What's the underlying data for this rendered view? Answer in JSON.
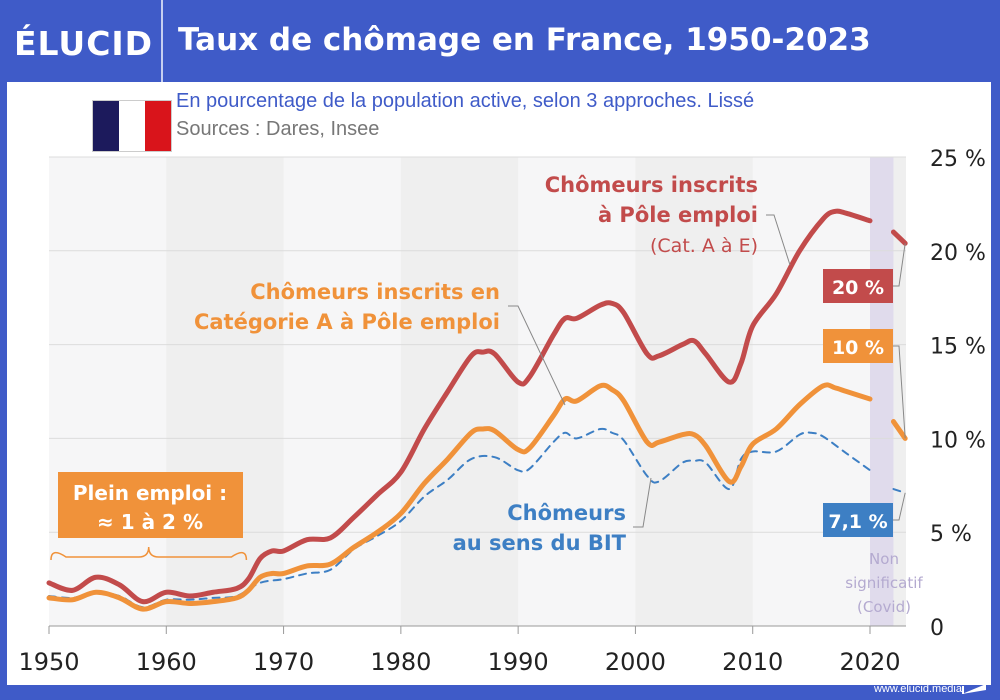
{
  "header": {
    "logo": "ÉLUCID",
    "title": "Taux de chômage en France, 1950-2023"
  },
  "subtitle": "En pourcentage de la population active, selon 3 approches. Lissé",
  "sources": "Sources : Dares, Insee",
  "footer": "www.elucid.media",
  "colors": {
    "brand": "#3f5bc8",
    "red": "#c24b4b",
    "orange": "#f0923a",
    "blue": "#3d7fc4",
    "covid_band": "#e0dbec",
    "flag_blue": "#1c1a5c",
    "flag_red": "#d9141b"
  },
  "chart_data": {
    "type": "line",
    "title": "Taux de chômage en France, 1950-2023",
    "xlabel": "",
    "ylabel": "",
    "xlim": [
      1950,
      2023
    ],
    "ylim": [
      0,
      25
    ],
    "x_ticks": [
      "1950",
      "1960",
      "1970",
      "1980",
      "1990",
      "2000",
      "2010",
      "2020"
    ],
    "y_ticks": [
      "0",
      "5 %",
      "10 %",
      "15 %",
      "20 %",
      "25 %"
    ],
    "grid": true,
    "series": [
      {
        "name": "Chômeurs inscrits à Pôle emploi (Cat. A à E)",
        "label_lines": [
          "Chômeurs inscrits",
          "à Pôle emploi",
          "(Cat. A à E)"
        ],
        "end_label": "20 %",
        "style": "solid",
        "points": [
          [
            1950,
            2.3
          ],
          [
            1952,
            1.9
          ],
          [
            1954,
            2.6
          ],
          [
            1956,
            2.2
          ],
          [
            1958,
            1.3
          ],
          [
            1960,
            1.8
          ],
          [
            1962,
            1.6
          ],
          [
            1964,
            1.8
          ],
          [
            1966,
            2.0
          ],
          [
            1967,
            2.5
          ],
          [
            1968,
            3.6
          ],
          [
            1969,
            4.0
          ],
          [
            1970,
            4.0
          ],
          [
            1972,
            4.6
          ],
          [
            1974,
            4.7
          ],
          [
            1976,
            5.8
          ],
          [
            1978,
            7.0
          ],
          [
            1980,
            8.2
          ],
          [
            1982,
            10.5
          ],
          [
            1984,
            12.5
          ],
          [
            1986,
            14.4
          ],
          [
            1987,
            14.6
          ],
          [
            1988,
            14.5
          ],
          [
            1990,
            13.0
          ],
          [
            1991,
            13.3
          ],
          [
            1993,
            15.5
          ],
          [
            1994,
            16.4
          ],
          [
            1995,
            16.4
          ],
          [
            1997,
            17.1
          ],
          [
            1998,
            17.2
          ],
          [
            1999,
            16.7
          ],
          [
            2001,
            14.5
          ],
          [
            2002,
            14.4
          ],
          [
            2004,
            15.0
          ],
          [
            2005,
            15.2
          ],
          [
            2006,
            14.5
          ],
          [
            2008,
            13.0
          ],
          [
            2009,
            14.0
          ],
          [
            2010,
            16.0
          ],
          [
            2012,
            17.7
          ],
          [
            2014,
            20.0
          ],
          [
            2016,
            21.7
          ],
          [
            2017,
            22.1
          ],
          [
            2018,
            22.0
          ],
          [
            2020,
            21.6
          ],
          [
            2021,
            21.2
          ],
          [
            2022,
            21.0
          ],
          [
            2023,
            20.4
          ]
        ]
      },
      {
        "name": "Chômeurs inscrits en Catégorie A à Pôle emploi",
        "label_lines": [
          "Chômeurs inscrits en",
          "Catégorie A à Pôle emploi"
        ],
        "end_label": "10 %",
        "style": "solid",
        "points": [
          [
            1950,
            1.5
          ],
          [
            1952,
            1.4
          ],
          [
            1954,
            1.8
          ],
          [
            1956,
            1.5
          ],
          [
            1958,
            0.9
          ],
          [
            1960,
            1.3
          ],
          [
            1962,
            1.2
          ],
          [
            1964,
            1.3
          ],
          [
            1966,
            1.5
          ],
          [
            1967,
            1.9
          ],
          [
            1968,
            2.6
          ],
          [
            1969,
            2.8
          ],
          [
            1970,
            2.8
          ],
          [
            1972,
            3.2
          ],
          [
            1974,
            3.3
          ],
          [
            1976,
            4.2
          ],
          [
            1978,
            5.0
          ],
          [
            1980,
            6.0
          ],
          [
            1982,
            7.6
          ],
          [
            1984,
            8.9
          ],
          [
            1986,
            10.3
          ],
          [
            1987,
            10.5
          ],
          [
            1988,
            10.4
          ],
          [
            1990,
            9.4
          ],
          [
            1991,
            9.5
          ],
          [
            1993,
            11.2
          ],
          [
            1994,
            12.1
          ],
          [
            1995,
            12.0
          ],
          [
            1997,
            12.8
          ],
          [
            1998,
            12.6
          ],
          [
            1999,
            12.0
          ],
          [
            2001,
            9.8
          ],
          [
            2002,
            9.8
          ],
          [
            2004,
            10.2
          ],
          [
            2005,
            10.2
          ],
          [
            2006,
            9.6
          ],
          [
            2008,
            7.7
          ],
          [
            2009,
            8.5
          ],
          [
            2010,
            9.7
          ],
          [
            2012,
            10.5
          ],
          [
            2014,
            11.8
          ],
          [
            2016,
            12.8
          ],
          [
            2017,
            12.7
          ],
          [
            2018,
            12.5
          ],
          [
            2020,
            12.1
          ],
          [
            2021,
            11.6
          ],
          [
            2022,
            10.9
          ],
          [
            2023,
            10.0
          ]
        ]
      },
      {
        "name": "Chômeurs au sens du BIT",
        "label_lines": [
          "Chômeurs",
          "au sens du BIT"
        ],
        "end_label": "7,1 %",
        "style": "dashed",
        "points": [
          [
            1950,
            1.6
          ],
          [
            1952,
            1.5
          ],
          [
            1954,
            1.8
          ],
          [
            1956,
            1.6
          ],
          [
            1958,
            1.0
          ],
          [
            1960,
            1.4
          ],
          [
            1962,
            1.4
          ],
          [
            1964,
            1.5
          ],
          [
            1966,
            1.6
          ],
          [
            1968,
            2.3
          ],
          [
            1970,
            2.5
          ],
          [
            1972,
            2.8
          ],
          [
            1974,
            3.0
          ],
          [
            1976,
            4.1
          ],
          [
            1978,
            4.8
          ],
          [
            1980,
            5.6
          ],
          [
            1982,
            6.9
          ],
          [
            1984,
            7.8
          ],
          [
            1986,
            8.9
          ],
          [
            1988,
            9.0
          ],
          [
            1990,
            8.3
          ],
          [
            1991,
            8.4
          ],
          [
            1993,
            9.8
          ],
          [
            1994,
            10.3
          ],
          [
            1995,
            10.0
          ],
          [
            1997,
            10.5
          ],
          [
            1998,
            10.3
          ],
          [
            1999,
            9.9
          ],
          [
            2001,
            8.0
          ],
          [
            2002,
            7.7
          ],
          [
            2004,
            8.7
          ],
          [
            2005,
            8.8
          ],
          [
            2006,
            8.7
          ],
          [
            2008,
            7.3
          ],
          [
            2009,
            8.9
          ],
          [
            2010,
            9.3
          ],
          [
            2012,
            9.3
          ],
          [
            2014,
            10.2
          ],
          [
            2015,
            10.3
          ],
          [
            2016,
            10.1
          ],
          [
            2018,
            9.2
          ],
          [
            2020,
            8.3
          ],
          [
            2021,
            7.9
          ],
          [
            2022,
            7.3
          ],
          [
            2023,
            7.1
          ]
        ]
      }
    ],
    "annotations": [
      {
        "text_lines": [
          "Plein emploi :",
          "≈ 1 à 2 %"
        ],
        "span": [
          1950,
          1967
        ]
      },
      {
        "text_lines": [
          "Non",
          "significatif",
          "(Covid)"
        ],
        "span": [
          2020,
          2022
        ]
      }
    ]
  }
}
